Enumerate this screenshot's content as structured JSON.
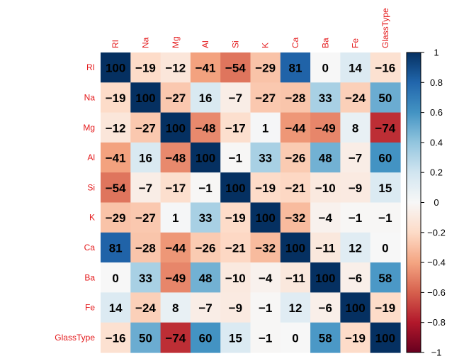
{
  "chart_data": {
    "type": "heatmap",
    "variables": [
      "RI",
      "Na",
      "Mg",
      "Al",
      "Si",
      "K",
      "Ca",
      "Ba",
      "Fe",
      "GlassType"
    ],
    "matrix": [
      [
        100,
        -19,
        -12,
        -41,
        -54,
        -29,
        81,
        0,
        14,
        -16
      ],
      [
        -19,
        100,
        -27,
        16,
        -7,
        -27,
        -28,
        33,
        -24,
        50
      ],
      [
        -12,
        -27,
        100,
        -48,
        -17,
        1,
        -44,
        -49,
        8,
        -74
      ],
      [
        -41,
        16,
        -48,
        100,
        -1,
        33,
        -26,
        48,
        -7,
        60
      ],
      [
        -54,
        -7,
        -17,
        -1,
        100,
        -19,
        -21,
        -10,
        -9,
        15
      ],
      [
        -29,
        -27,
        1,
        33,
        -19,
        100,
        -32,
        -4,
        -1,
        -1
      ],
      [
        81,
        -28,
        -44,
        -26,
        -21,
        -32,
        100,
        -11,
        12,
        0
      ],
      [
        0,
        33,
        -49,
        48,
        -10,
        -4,
        -11,
        100,
        -6,
        58
      ],
      [
        14,
        -24,
        8,
        -7,
        -9,
        -1,
        12,
        -6,
        100,
        -19
      ],
      [
        -16,
        50,
        -74,
        60,
        15,
        -1,
        0,
        58,
        -19,
        100
      ]
    ],
    "colorbar": {
      "range": [
        -1,
        1
      ],
      "ticks": [
        "1",
        "0.8",
        "0.6",
        "0.4",
        "0.2",
        "0",
        "−0.2",
        "−0.4",
        "−0.6",
        "−0.8",
        "−1"
      ]
    },
    "colorscale": {
      "negative": "#67001f",
      "mid": "#ffffff",
      "positive": "#053061"
    },
    "label_color": "#e41a1c",
    "value_color": "#000000"
  }
}
